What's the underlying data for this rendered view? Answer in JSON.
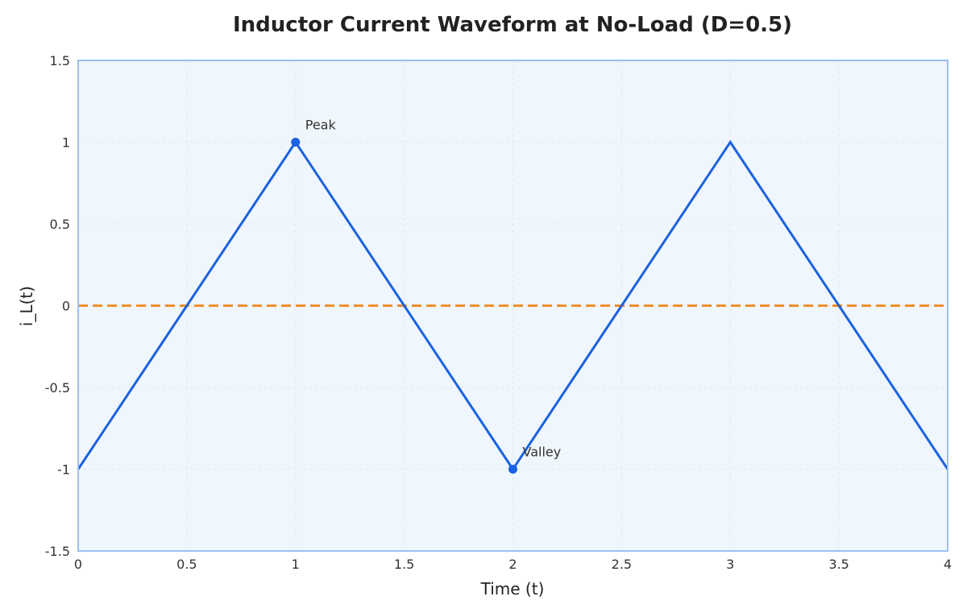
{
  "chart_data": {
    "type": "line",
    "title": "Inductor Current Waveform at No-Load (D=0.5)",
    "xlabel": "Time (t)",
    "ylabel": "i_L(t)",
    "xlim": [
      0,
      4
    ],
    "ylim": [
      -1.5,
      1.5
    ],
    "xticks": [
      0,
      0.5,
      1,
      1.5,
      2,
      2.5,
      3,
      3.5,
      4
    ],
    "xtick_labels": [
      "0",
      "0.5",
      "1",
      "1.5",
      "2",
      "2.5",
      "3",
      "3.5",
      "4"
    ],
    "yticks": [
      -1.5,
      -1,
      -0.5,
      0,
      0.5,
      1,
      1.5
    ],
    "ytick_labels": [
      "-1.5",
      "-1",
      "-0.5",
      "0",
      "0.5",
      "1",
      "1.5"
    ],
    "grid": true,
    "series": [
      {
        "x": [
          0,
          1,
          2,
          3,
          4
        ],
        "y": [
          -1,
          1,
          -1,
          1,
          -1
        ],
        "color": "#1a62e0",
        "style": "solid"
      },
      {
        "x": [
          0,
          4
        ],
        "y": [
          0,
          0
        ],
        "color": "#f0902a",
        "style": "dashed"
      }
    ],
    "annotations": [
      {
        "text": "Peak",
        "x": 1,
        "y": 1
      },
      {
        "text": "Valley",
        "x": 2,
        "y": -1
      }
    ],
    "colors": {
      "plot_background": "#f0f6fd",
      "axes_border": "#9bbff0",
      "grid": "#dde7f3"
    }
  }
}
